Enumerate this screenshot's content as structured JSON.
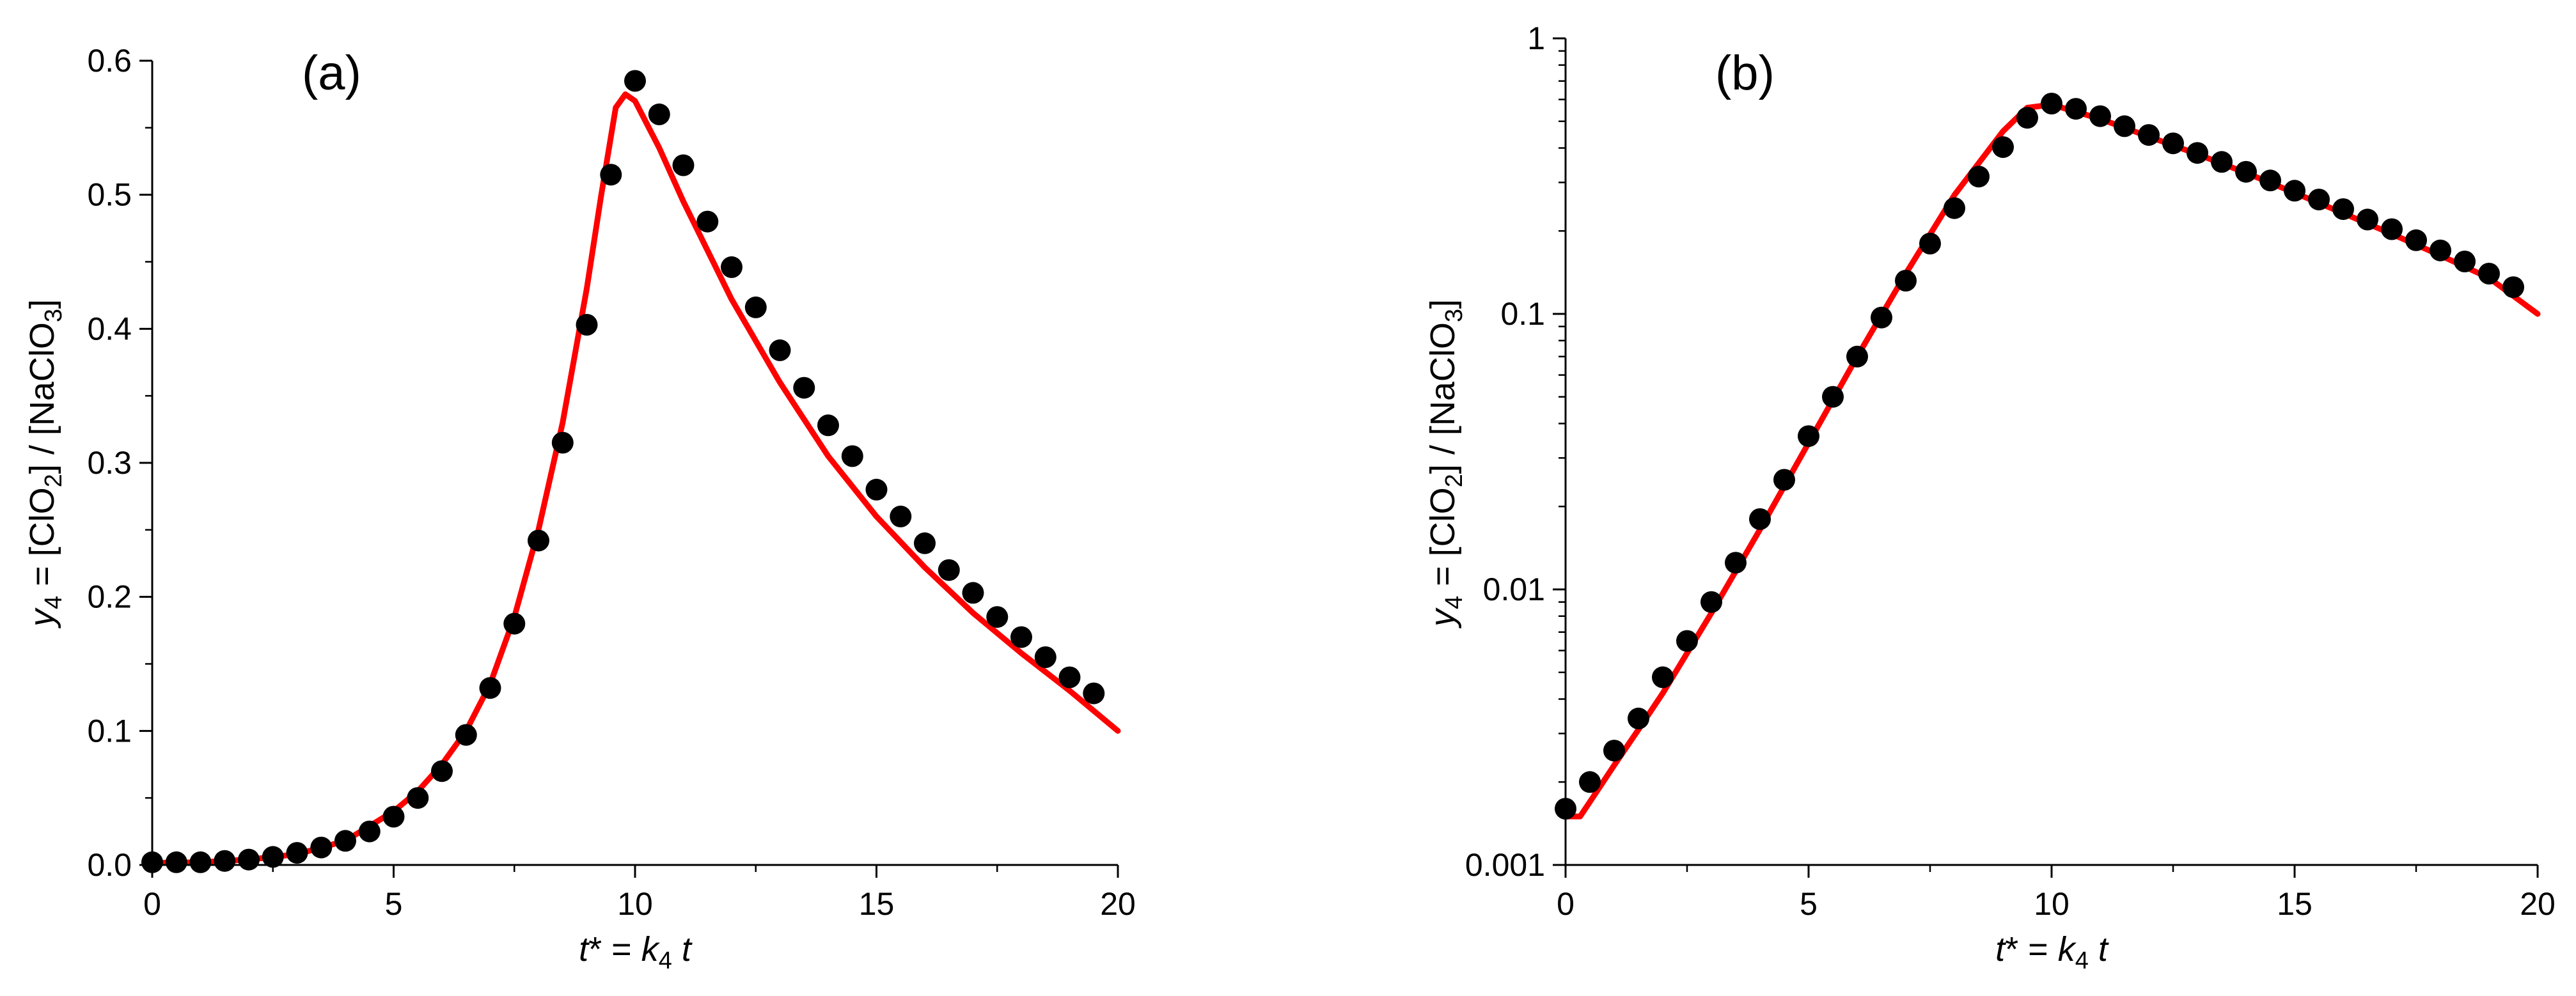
{
  "chart_data": [
    {
      "type": "scatter",
      "panel_label": "(a)",
      "xlabel": {
        "var": "t",
        "star": "*",
        "eq": " = ",
        "k": "k",
        "sub": "4",
        "t": " t"
      },
      "ylabel": {
        "var": "y",
        "sub": "4",
        "eq": " = [ClO",
        "sub2": "2",
        "mid": "] / [NaClO",
        "sub3": "3",
        "end": "]"
      },
      "xlim": [
        0,
        20
      ],
      "ylim": [
        0,
        0.6
      ],
      "yscale": "linear",
      "xticks": [
        "0",
        "5",
        "10",
        "15",
        "20"
      ],
      "yticks": [
        "0.0",
        "0.1",
        "0.2",
        "0.3",
        "0.4",
        "0.5",
        "0.6"
      ],
      "grid": false,
      "series": [
        {
          "kind": "points",
          "color": "#000000",
          "x": [
            0,
            0.5,
            1,
            1.5,
            2,
            2.5,
            3,
            3.5,
            4,
            4.5,
            5,
            5.5,
            6,
            6.5,
            7,
            7.5,
            8,
            8.5,
            9,
            9.5,
            10,
            10.5,
            11,
            11.5,
            12,
            12.5,
            13,
            13.5,
            14,
            14.5,
            15,
            15.5,
            16,
            16.5,
            17,
            17.5,
            18,
            18.5,
            19,
            19.5
          ],
          "y": [
            0.002,
            0.002,
            0.002,
            0.003,
            0.004,
            0.006,
            0.009,
            0.013,
            0.018,
            0.025,
            0.036,
            0.05,
            0.07,
            0.097,
            0.132,
            0.18,
            0.242,
            0.315,
            0.403,
            0.515,
            0.585,
            0.56,
            0.522,
            0.48,
            0.446,
            0.416,
            0.384,
            0.356,
            0.328,
            0.305,
            0.28,
            0.26,
            0.24,
            0.22,
            0.203,
            0.185,
            0.17,
            0.155,
            0.14,
            0.128
          ]
        },
        {
          "kind": "line",
          "color": "#ff0000",
          "x": [
            0,
            1,
            2,
            3,
            4,
            5,
            5.5,
            6,
            6.5,
            7,
            7.5,
            8,
            8.5,
            9,
            9.3,
            9.6,
            9.8,
            10,
            10.5,
            11,
            12,
            13,
            14,
            15,
            16,
            17,
            18,
            19,
            20
          ],
          "y": [
            0.0015,
            0.002,
            0.004,
            0.008,
            0.018,
            0.04,
            0.055,
            0.075,
            0.1,
            0.135,
            0.185,
            0.25,
            0.33,
            0.43,
            0.5,
            0.565,
            0.575,
            0.57,
            0.535,
            0.495,
            0.422,
            0.36,
            0.305,
            0.26,
            0.222,
            0.188,
            0.158,
            0.13,
            0.1
          ]
        }
      ]
    },
    {
      "type": "scatter",
      "panel_label": "(b)",
      "xlabel": {
        "var": "t",
        "star": "*",
        "eq": " = ",
        "k": "k",
        "sub": "4",
        "t": " t"
      },
      "ylabel": {
        "var": "y",
        "sub": "4",
        "eq": " = [ClO",
        "sub2": "2",
        "mid": "] / [NaClO",
        "sub3": "3",
        "end": "]"
      },
      "xlim": [
        0,
        20
      ],
      "ylim": [
        0.001,
        1
      ],
      "yscale": "log",
      "xticks": [
        "0",
        "5",
        "10",
        "15",
        "20"
      ],
      "yticks": [
        "0.001",
        "0.01",
        "0.1",
        "1"
      ],
      "grid": false,
      "series": [
        {
          "kind": "points",
          "color": "#000000",
          "x": [
            0,
            0.5,
            1,
            1.5,
            2,
            2.5,
            3,
            3.5,
            4,
            4.5,
            5,
            5.5,
            6,
            6.5,
            7,
            7.5,
            8,
            8.5,
            9,
            9.5,
            10,
            10.5,
            11,
            11.5,
            12,
            12.5,
            13,
            13.5,
            14,
            14.5,
            15,
            15.5,
            16,
            16.5,
            17,
            17.5,
            18,
            18.5,
            19,
            19.5
          ],
          "y": [
            0.0016,
            0.002,
            0.0026,
            0.0034,
            0.0048,
            0.0065,
            0.009,
            0.0125,
            0.018,
            0.025,
            0.036,
            0.05,
            0.07,
            0.097,
            0.132,
            0.18,
            0.242,
            0.315,
            0.403,
            0.515,
            0.58,
            0.555,
            0.522,
            0.48,
            0.446,
            0.416,
            0.384,
            0.356,
            0.328,
            0.305,
            0.28,
            0.26,
            0.24,
            0.22,
            0.203,
            0.185,
            0.17,
            0.155,
            0.14,
            0.125
          ]
        },
        {
          "kind": "line",
          "color": "#ff0000",
          "x": [
            0,
            0.3,
            0.6,
            1,
            1.5,
            2,
            3,
            4,
            5,
            6,
            7,
            8,
            9,
            9.5,
            10,
            11,
            12,
            13,
            14,
            15,
            16,
            17,
            18,
            19,
            20
          ],
          "y": [
            0.0015,
            0.0015,
            0.0018,
            0.0023,
            0.0031,
            0.0042,
            0.0082,
            0.0165,
            0.034,
            0.07,
            0.14,
            0.27,
            0.46,
            0.56,
            0.575,
            0.51,
            0.44,
            0.38,
            0.325,
            0.275,
            0.232,
            0.195,
            0.163,
            0.135,
            0.1
          ]
        }
      ]
    }
  ]
}
